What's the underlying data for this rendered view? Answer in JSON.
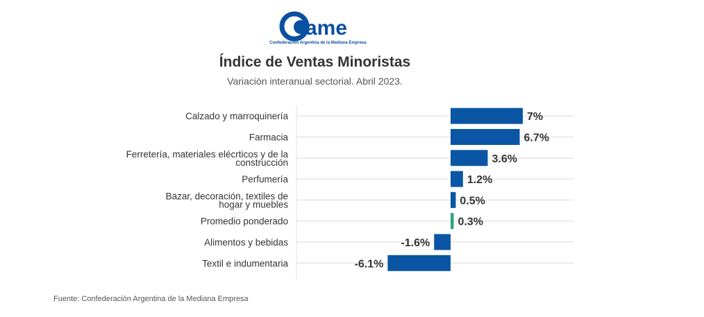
{
  "logo": {
    "text": "ame",
    "tagline": "Confederación Argentina de la Mediana Empresa"
  },
  "chart_data": {
    "type": "bar",
    "orientation": "horizontal",
    "title": "Índice de Ventas Minoristas",
    "subtitle": "Variación interanual sectorial. Abril 2023.",
    "categories": [
      "Calzado y marroquinería",
      "Farmacia",
      "Ferretería, materiales elécrticos y de la construcción",
      "Perfumería",
      "Bazar, decoración, textiles de hogar y muebles",
      "Promedio ponderado",
      "Alimentos y bebidas",
      "Textil e indumentaria"
    ],
    "values": [
      7,
      6.7,
      3.6,
      1.2,
      0.5,
      0.3,
      -1.6,
      -6.1
    ],
    "labels": [
      "7%",
      "6.7%",
      "3.6%",
      "1.2%",
      "0.5%",
      "0.3%",
      "-1.6%",
      "-6.1%"
    ],
    "highlight_index": 5,
    "colors": {
      "bar": "#0a56a4",
      "highlight": "#2ea37a",
      "grid": "#e6e6e6"
    },
    "xlim": [
      -15,
      12
    ],
    "grid": true
  },
  "footer": {
    "source": "Fuente: Confederación Argentina de la Mediana Empresa"
  }
}
